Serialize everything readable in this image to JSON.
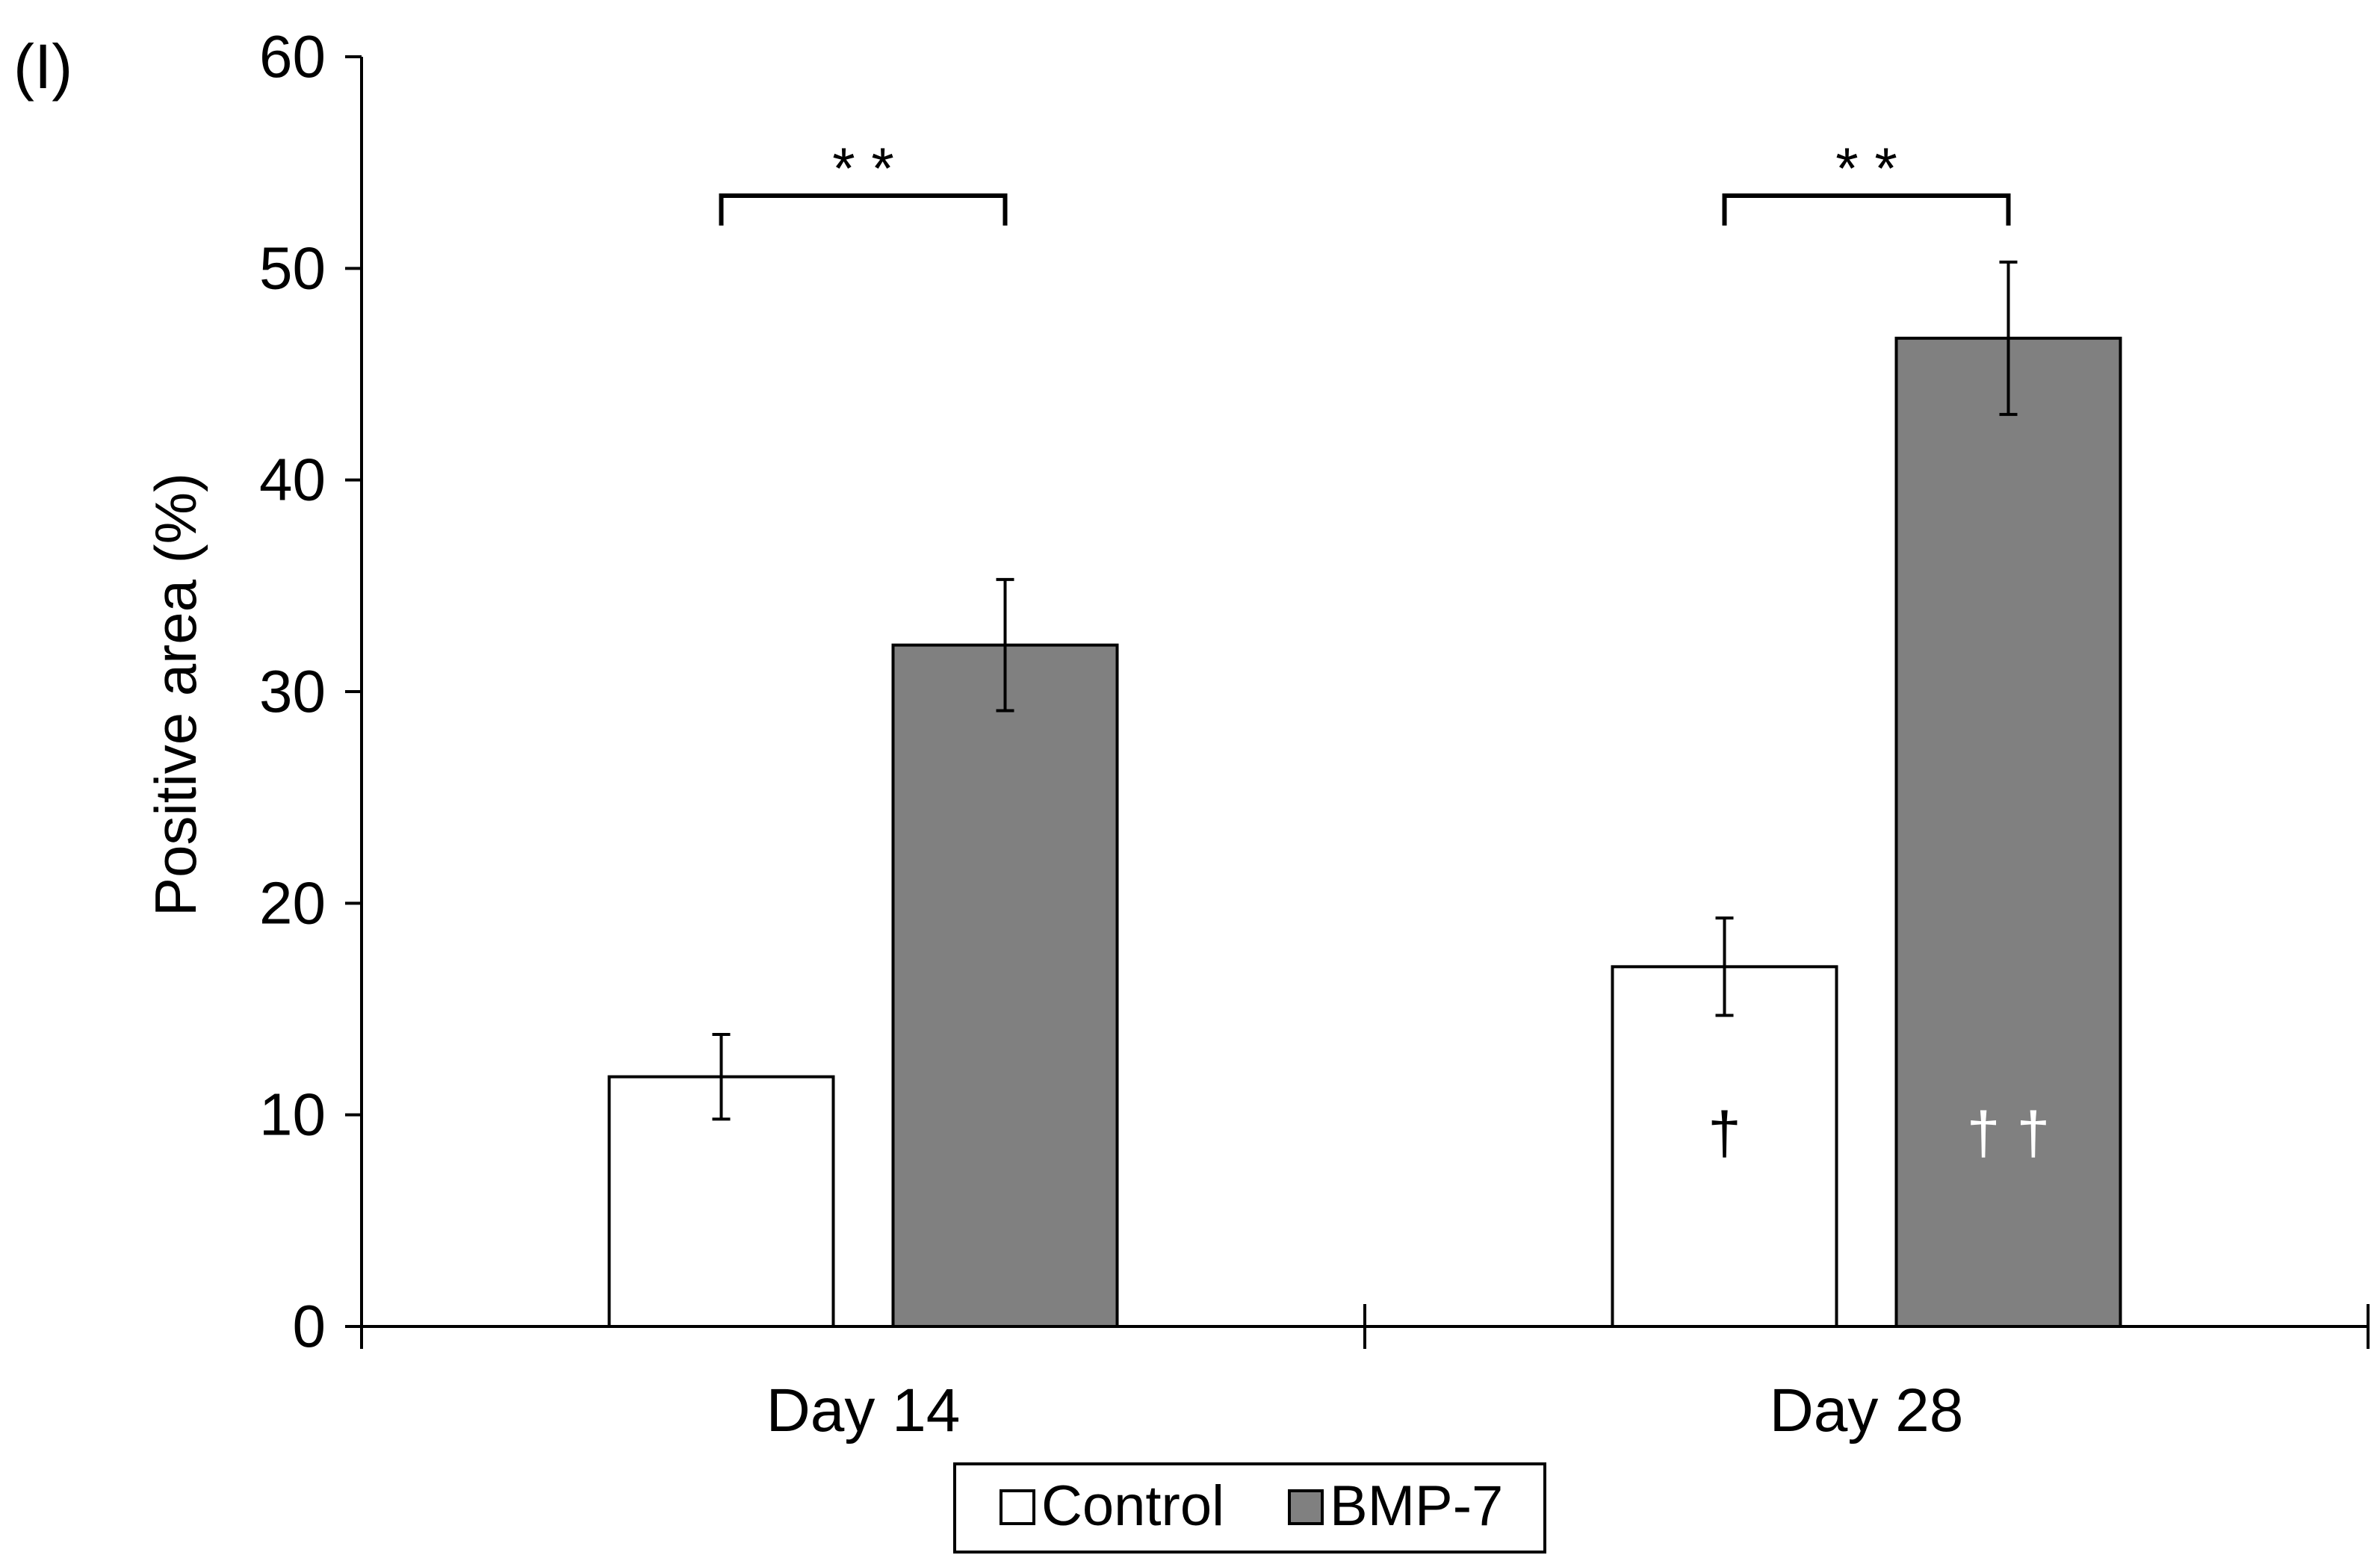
{
  "panel_label": "(I)",
  "chart_data": {
    "type": "bar",
    "categories": [
      "Day 14",
      "Day 28"
    ],
    "series": [
      {
        "name": "Control",
        "color": "#ffffff",
        "values": [
          11.8,
          17.0
        ],
        "errors": [
          2.0,
          2.3
        ],
        "inner_marks": [
          "",
          "†"
        ]
      },
      {
        "name": "BMP-7",
        "color": "#808080",
        "values": [
          32.2,
          46.7
        ],
        "errors": [
          3.1,
          3.6
        ],
        "inner_marks": [
          "",
          "† †"
        ]
      }
    ],
    "significance": [
      "* *",
      "* *"
    ],
    "xlabel": "",
    "ylabel": "Positive area (%)",
    "ylim": [
      0,
      60
    ],
    "yticks": [
      "0",
      "10",
      "20",
      "30",
      "40",
      "50",
      "60"
    ],
    "grid": false,
    "legend_position": "bottom-center"
  }
}
